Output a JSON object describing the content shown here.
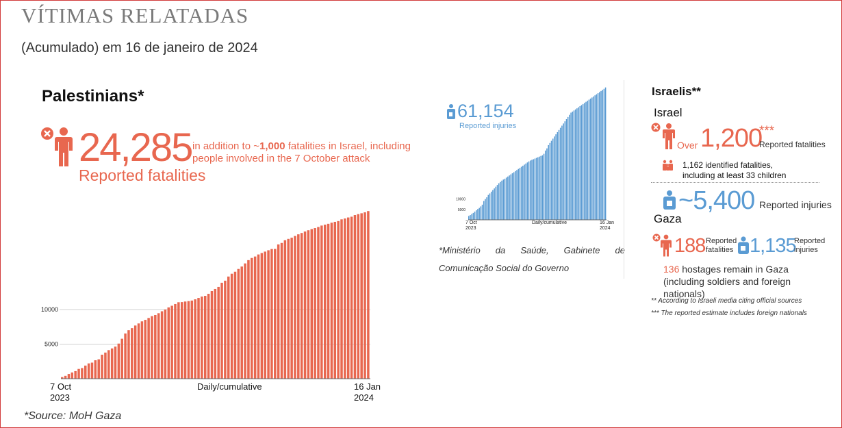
{
  "header": {
    "title": "VÍTIMAS RELATADAS",
    "subtitle": "(Acumulado) em 16 de janeiro de 2024"
  },
  "palestinians": {
    "heading": "Palestinians*",
    "fatalities": "24,285",
    "fatalities_label": "Reported fatalities",
    "note_prefix": "in addition to ~",
    "note_number": "1,000",
    "note_rest": " fatalities in Israel, including people involved in the 7 October attack",
    "injuries": "61,154",
    "injuries_label": "Reported injuries",
    "source": "*Source: MoH Gaza",
    "fatal_chart_labels": {
      "start": "7 Oct\n2023",
      "middle": "Daily/cumulative",
      "end": "16 Jan\n2024"
    },
    "injury_chart_labels": {
      "start": "7 Oct\n2023",
      "middle": "Daily/cumulative",
      "end": "16 Jan\n2024"
    },
    "injury_source": "*Ministério da Saúde, Gabinete de Comunicação Social do Governo"
  },
  "israelis": {
    "heading": "Israelis**",
    "israel_heading": "Israel",
    "over_label": "Over",
    "fatalities": "1,200",
    "fatalities_marks": "***",
    "fatalities_label": "Reported fatalities",
    "identified": "1,162 identified fatalities, including at least 33 children",
    "injuries": "~5,400",
    "injuries_label": "Reported injuries",
    "gaza_heading": "Gaza",
    "gaza_fatalities": "188",
    "gaza_fatalities_label": "Reported fatalities",
    "gaza_injuries": "1,135",
    "gaza_injuries_label": "Reported injuries",
    "hostages_number": "136",
    "hostages_text": " hostages remain in Gaza (including soldiers and foreign nationals)",
    "footnote1": "** According to Israeli media citing official sources",
    "footnote2": "*** The reported estimate includes foreign nationals"
  },
  "icons": {
    "fatality": "person-x-icon",
    "injury": "person-bandaged-icon",
    "family": "family-icon"
  },
  "colors": {
    "red": "#e8674f",
    "blue": "#5a9bd3",
    "border": "#d23a3a"
  },
  "chart_data": [
    {
      "type": "bar",
      "xlabel": "Daily/cumulative",
      "x_start": "7 Oct 2023",
      "x_end": "16 Jan 2024",
      "yticks": [
        5000,
        10000
      ],
      "ylim": [
        0,
        25000
      ],
      "grid": true,
      "series": [
        {
          "name": "Reported fatalities",
          "values": [
            232,
            413,
            687,
            900,
            1100,
            1417,
            1537,
            1900,
            2215,
            2329,
            2670,
            2808,
            3478,
            3785,
            4137,
            4385,
            4651,
            5087,
            5791,
            6546,
            7028,
            7326,
            7703,
            8005,
            8306,
            8525,
            8796,
            9061,
            9227,
            9488,
            9770,
            10022,
            10328,
            10569,
            10818,
            11078,
            11100,
            11180,
            11240,
            11320,
            11500,
            11700,
            11900,
            12000,
            12300,
            12700,
            13000,
            13300,
            13900,
            14200,
            14800,
            15207,
            15500,
            15900,
            16248,
            16700,
            17177,
            17487,
            17700,
            17997,
            18205,
            18412,
            18608,
            18787,
            18800,
            19453,
            19667,
            20057,
            20258,
            20424,
            20674,
            20915,
            21110,
            21320,
            21507,
            21672,
            21822,
            21978,
            22185,
            22313,
            22438,
            22600,
            22722,
            22835,
            23084,
            23210,
            23357,
            23469,
            23708,
            23843,
            23968,
            24100,
            24285
          ]
        }
      ]
    },
    {
      "type": "bar",
      "xlabel": "Daily/cumulative",
      "x_start": "7 Oct 2023",
      "x_end": "16 Jan 2024",
      "yticks": [
        5000,
        10000
      ],
      "ylim": [
        0,
        62000
      ],
      "grid": false,
      "series": [
        {
          "name": "Reported injuries",
          "values": [
            1788,
            2200,
            2700,
            3200,
            3800,
            4400,
            5000,
            5500,
            6200,
            7000,
            8700,
            9600,
            10400,
            11500,
            12200,
            13000,
            13750,
            14500,
            15300,
            16100,
            16900,
            17500,
            18100,
            18600,
            19000,
            19500,
            20000,
            20500,
            21000,
            21500,
            22000,
            22500,
            23000,
            23500,
            24000,
            24500,
            25000,
            25500,
            26000,
            26500,
            27000,
            27400,
            27700,
            28000,
            28300,
            28600,
            28900,
            29200,
            29500,
            29800,
            30500,
            32000,
            33000,
            34500,
            35500,
            36500,
            37500,
            38500,
            39500,
            40500,
            41500,
            42500,
            43500,
            44500,
            45500,
            46500,
            47500,
            48500,
            49500,
            50000,
            50500,
            51000,
            51500,
            52000,
            52500,
            53000,
            53500,
            54000,
            54500,
            55000,
            55500,
            56000,
            56500,
            57000,
            57500,
            58000,
            58500,
            59000,
            59500,
            60000,
            60500,
            61154
          ]
        }
      ]
    }
  ]
}
